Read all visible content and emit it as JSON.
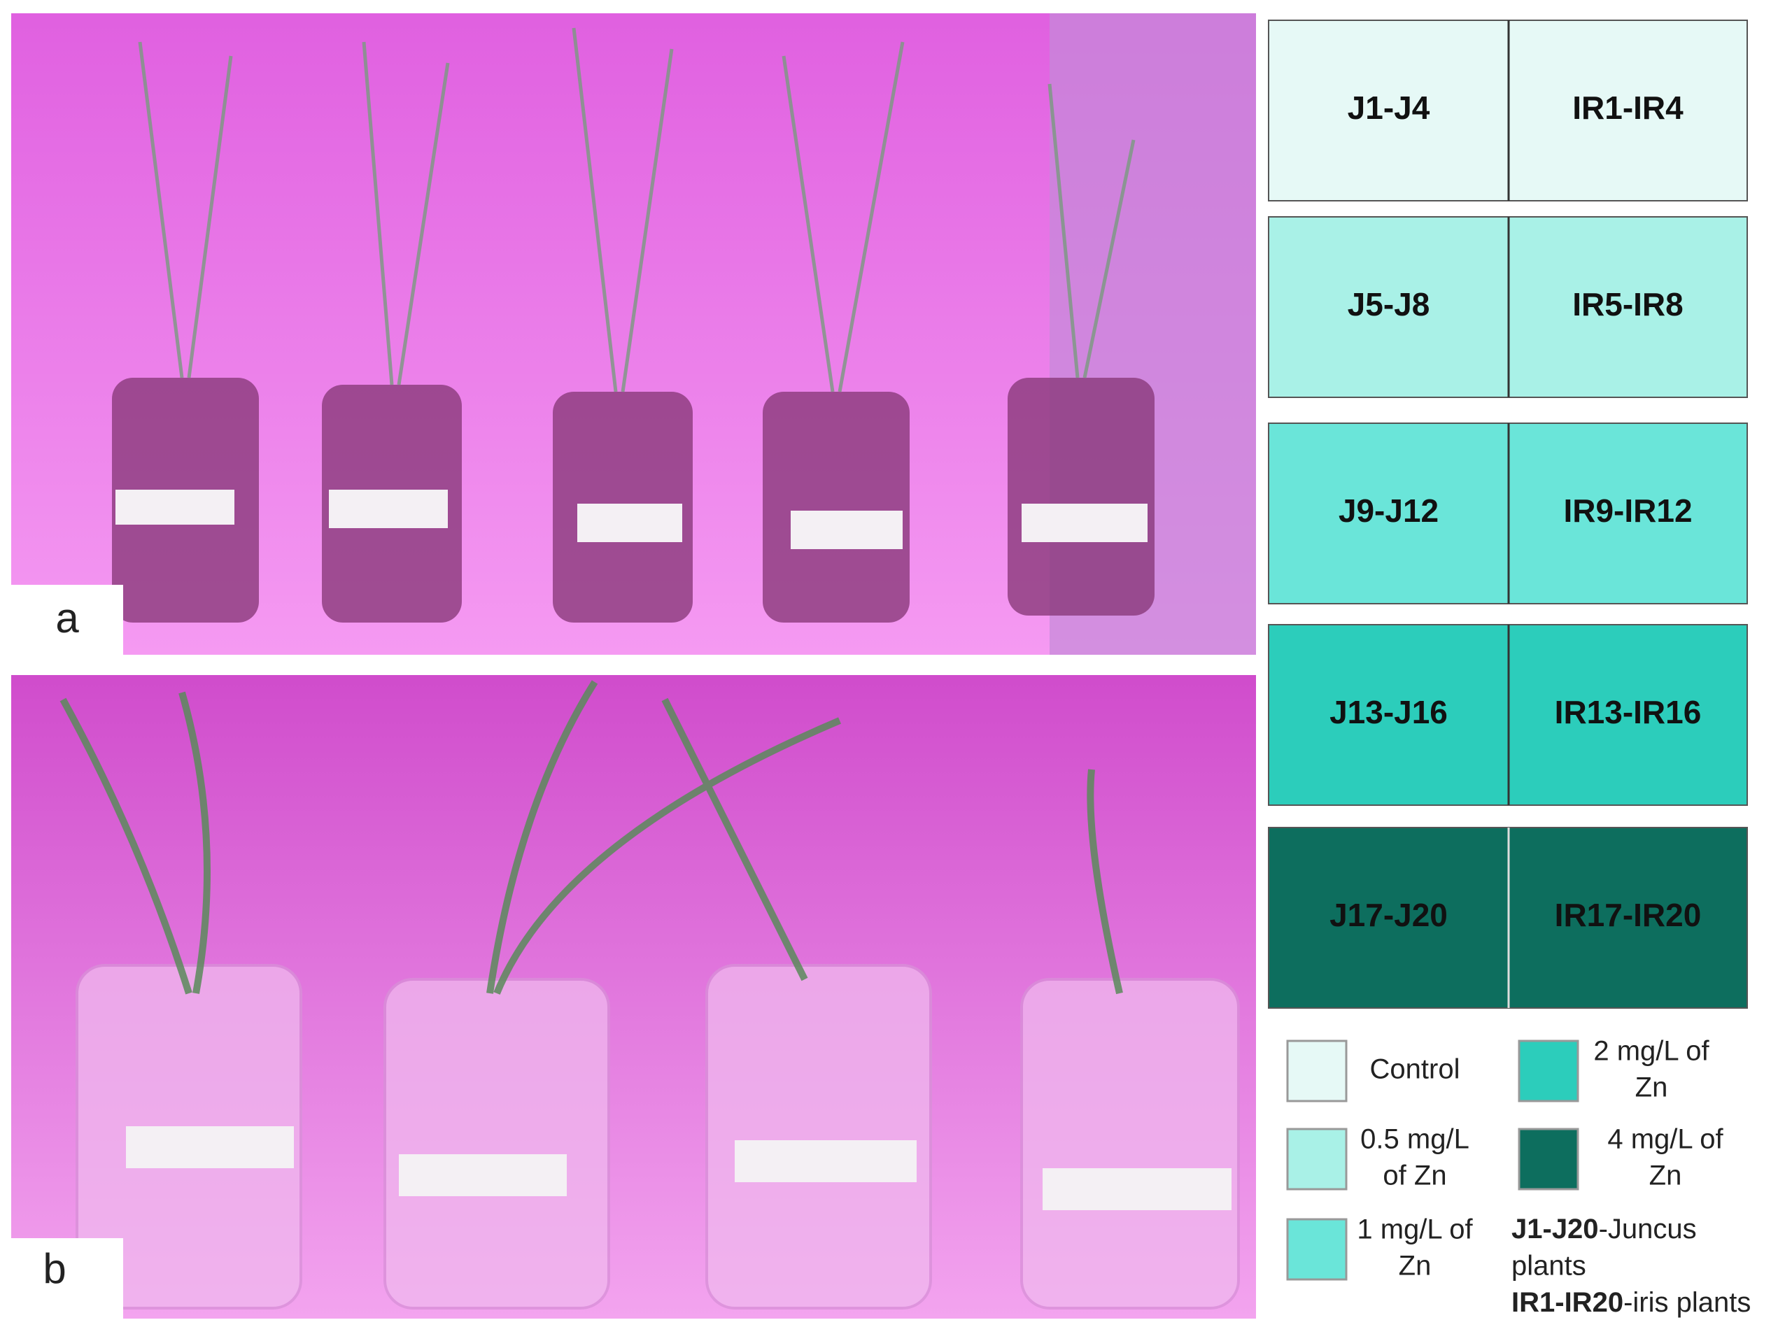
{
  "panels": [
    {
      "label": "a"
    },
    {
      "label": "b"
    }
  ],
  "grid": {
    "rows": [
      {
        "left": "J1-J4",
        "right": "IR1-IR4",
        "color": "#e6f9f6"
      },
      {
        "left": "J5-J8",
        "right": "IR5-IR8",
        "color": "#a9f1e7"
      },
      {
        "left": "J9-J12",
        "right": "IR9-IR12",
        "color": "#6ae5d9"
      },
      {
        "left": "J13-J16",
        "right": "IR13-IR16",
        "color": "#2ccdbb"
      },
      {
        "left": "J17-J20",
        "right": "IR17-IR20",
        "color": "#0d6e5e"
      }
    ]
  },
  "legend": {
    "items": [
      {
        "label": [
          "Control"
        ],
        "color": "#e6f9f6"
      },
      {
        "label": [
          "0.5 mg/L",
          "of Zn"
        ],
        "color": "#a9f1e7"
      },
      {
        "label": [
          "1 mg/L of",
          "Zn"
        ],
        "color": "#6ae5d9"
      },
      {
        "label": [
          "2 mg/L of",
          "Zn"
        ],
        "color": "#2ccdbb"
      },
      {
        "label": [
          "4 mg/L of",
          "Zn"
        ],
        "color": "#0d6e5e"
      }
    ],
    "notes": [
      {
        "bold": "J1-J20",
        "text": "-Juncus",
        "cont": "plants"
      },
      {
        "bold": "IR1-IR20",
        "text": "-iris plants"
      }
    ]
  }
}
